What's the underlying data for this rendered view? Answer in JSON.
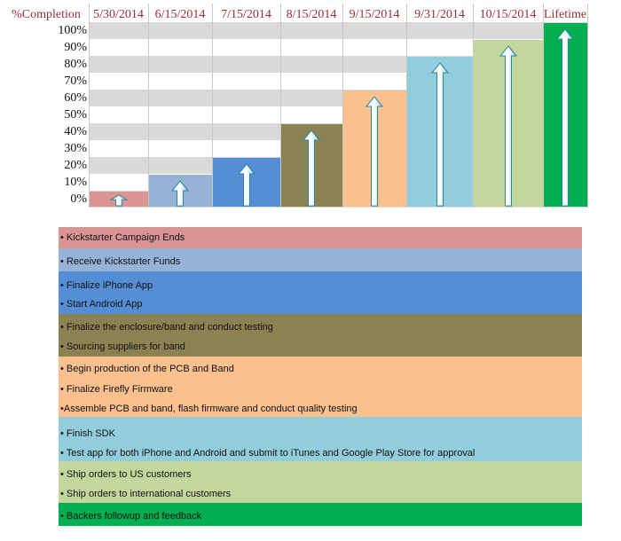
{
  "chart_data": {
    "type": "bar",
    "corner_label": "%Completion",
    "categories": [
      "5/30/2014",
      "6/15/2014",
      "7/15/2014",
      "8/15/2014",
      "9/15/2014",
      "9/31/2014",
      "10/15/2014",
      "Lifetime"
    ],
    "values": [
      9,
      19,
      29,
      49,
      69,
      89,
      99,
      109
    ],
    "y_ticks": [
      "100%",
      "90%",
      "80%",
      "70%",
      "60%",
      "50%",
      "40%",
      "30%",
      "20%",
      "10%",
      "0%"
    ],
    "ylim": [
      0,
      109
    ],
    "colors": [
      "#d99594",
      "#95b3d7",
      "#558ed5",
      "#8b8251",
      "#fac08f",
      "#92cddc",
      "#c3d69b",
      "#00b050"
    ],
    "title": "",
    "xlabel": "",
    "ylabel": ""
  },
  "timeline": [
    {
      "color": "#d99594",
      "items": [
        "• Kickstarter Campaign Ends"
      ]
    },
    {
      "color": "#95b3d7",
      "items": [
        "• Receive Kickstarter Funds"
      ]
    },
    {
      "color": "#558ed5",
      "items": [
        "• Finalize iPhone App",
        "• Start Android App"
      ]
    },
    {
      "color": "#8b8251",
      "items": [
        "• Finalize the enclosure/band and conduct testing",
        "• Sourcing suppliers for band"
      ]
    },
    {
      "color": "#fac08f",
      "items": [
        "• Begin production of the PCB and Band",
        "• Finalize Firefly Firmware",
        "•Assemble PCB and band, flash firmware and conduct quality testing"
      ]
    },
    {
      "color": "#92cddc",
      "items": [
        "• Finish SDK",
        "• Test app for both iPhone and Android and submit to iTunes and Google Play Store for approval"
      ]
    },
    {
      "color": "#c3d69b",
      "items": [
        "• Ship orders to US customers",
        "• Ship orders to international customers"
      ]
    },
    {
      "color": "#00b050",
      "items": [
        "• Backers followup and feedback"
      ]
    }
  ]
}
